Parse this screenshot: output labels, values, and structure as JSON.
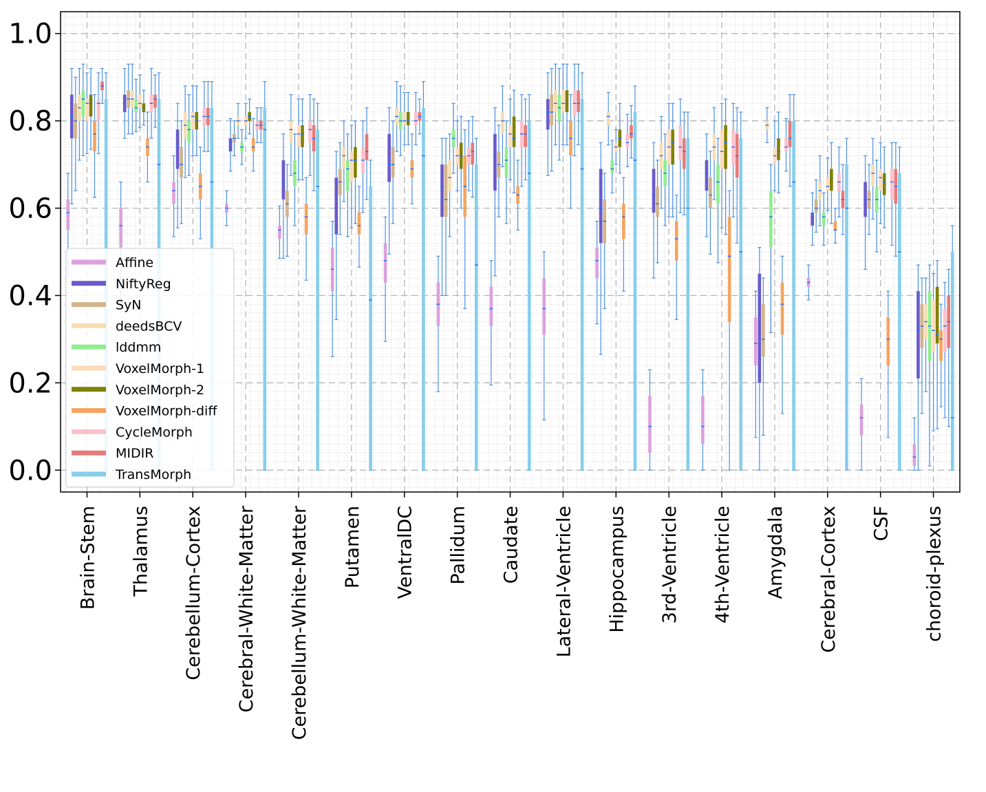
{
  "chart_data": {
    "type": "box",
    "title": "",
    "xlabel": "",
    "ylabel": "",
    "ylim": [
      -0.05,
      1.05
    ],
    "yticks": [
      "0.0",
      "0.2",
      "0.4",
      "0.6",
      "0.8",
      "1.0"
    ],
    "grid": true,
    "legend_position": "lower-left",
    "categories": [
      "Brain-Stem",
      "Thalamus",
      "Cerebellum-Cortex",
      "Cerebral-White-Matter",
      "Cerebellum-White-Matter",
      "Putamen",
      "VentralDC",
      "Pallidum",
      "Caudate",
      "Lateral-Ventricle",
      "Hippocampus",
      "3rd-Ventricle",
      "4th-Ventricle",
      "Amygdala",
      "Cerebral-Cortex",
      "CSF",
      "choroid-plexus"
    ],
    "series": [
      {
        "name": "Affine",
        "color": "#dda0dd",
        "median": [
          0.59,
          0.56,
          0.64,
          0.6,
          0.55,
          0.46,
          0.48,
          0.38,
          0.37,
          0.37,
          0.48,
          0.1,
          0.1,
          0.29,
          0.43,
          0.12,
          0.03
        ],
        "q1": [
          0.55,
          0.51,
          0.61,
          0.59,
          0.53,
          0.41,
          0.43,
          0.33,
          0.33,
          0.31,
          0.44,
          0.04,
          0.06,
          0.24,
          0.42,
          0.08,
          0.01
        ],
        "q3": [
          0.62,
          0.6,
          0.66,
          0.61,
          0.56,
          0.51,
          0.52,
          0.43,
          0.42,
          0.44,
          0.51,
          0.17,
          0.17,
          0.35,
          0.44,
          0.15,
          0.06
        ]
      },
      {
        "name": "NiftyReg",
        "color": "#6a5acd",
        "median": [
          0.81,
          0.84,
          0.74,
          0.75,
          0.66,
          0.63,
          0.7,
          0.65,
          0.72,
          0.82,
          0.6,
          0.63,
          0.68,
          0.29,
          0.58,
          0.62,
          0.32
        ],
        "q1": [
          0.76,
          0.82,
          0.69,
          0.73,
          0.62,
          0.54,
          0.66,
          0.58,
          0.64,
          0.78,
          0.52,
          0.59,
          0.64,
          0.2,
          0.56,
          0.58,
          0.21
        ],
        "q3": [
          0.86,
          0.86,
          0.78,
          0.76,
          0.71,
          0.67,
          0.77,
          0.7,
          0.77,
          0.85,
          0.69,
          0.69,
          0.71,
          0.45,
          0.59,
          0.66,
          0.41
        ]
      },
      {
        "name": "SyN",
        "color": "#d2b48c",
        "median": [
          0.8,
          0.85,
          0.7,
          0.76,
          0.61,
          0.66,
          0.7,
          0.62,
          0.7,
          0.82,
          0.57,
          0.61,
          0.63,
          0.3,
          0.6,
          0.62,
          0.33
        ],
        "q1": [
          0.76,
          0.83,
          0.67,
          0.75,
          0.58,
          0.63,
          0.67,
          0.58,
          0.67,
          0.79,
          0.52,
          0.58,
          0.6,
          0.26,
          0.59,
          0.6,
          0.28
        ],
        "q3": [
          0.84,
          0.87,
          0.74,
          0.77,
          0.64,
          0.69,
          0.74,
          0.7,
          0.73,
          0.86,
          0.62,
          0.65,
          0.67,
          0.38,
          0.62,
          0.64,
          0.38
        ]
      },
      {
        "name": "deedsBCV",
        "color": "#f5deb3",
        "median": [
          0.83,
          0.85,
          0.79,
          0.8,
          0.78,
          0.72,
          0.81,
          0.67,
          0.8,
          0.84,
          0.81,
          0.72,
          0.74,
          0.79,
          0.64,
          0.68,
          0.34
        ],
        "q1": [
          0.8,
          0.83,
          0.76,
          0.79,
          0.75,
          0.69,
          0.79,
          0.64,
          0.77,
          0.82,
          0.79,
          0.69,
          0.71,
          0.78,
          0.62,
          0.65,
          0.3
        ],
        "q3": [
          0.86,
          0.87,
          0.82,
          0.81,
          0.8,
          0.74,
          0.83,
          0.71,
          0.82,
          0.87,
          0.82,
          0.75,
          0.77,
          0.8,
          0.66,
          0.7,
          0.38
        ]
      },
      {
        "name": "lddmm",
        "color": "#90ee90",
        "median": [
          0.85,
          0.83,
          0.78,
          0.74,
          0.68,
          0.69,
          0.8,
          0.76,
          0.71,
          0.83,
          0.69,
          0.68,
          0.66,
          0.58,
          0.58,
          0.62,
          0.33
        ],
        "q1": [
          0.81,
          0.82,
          0.75,
          0.73,
          0.65,
          0.64,
          0.78,
          0.74,
          0.67,
          0.8,
          0.68,
          0.65,
          0.61,
          0.51,
          0.56,
          0.59,
          0.25
        ],
        "q3": [
          0.87,
          0.85,
          0.8,
          0.75,
          0.71,
          0.71,
          0.82,
          0.78,
          0.74,
          0.86,
          0.71,
          0.71,
          0.7,
          0.64,
          0.59,
          0.65,
          0.41
        ]
      },
      {
        "name": "VoxelMorph-1",
        "color": "#ffdab9",
        "median": [
          0.84,
          0.84,
          0.81,
          0.8,
          0.77,
          0.71,
          0.8,
          0.72,
          0.77,
          0.84,
          0.74,
          0.74,
          0.73,
          0.72,
          0.65,
          0.67,
          0.32
        ],
        "q1": [
          0.8,
          0.83,
          0.78,
          0.79,
          0.74,
          0.66,
          0.79,
          0.7,
          0.74,
          0.82,
          0.73,
          0.7,
          0.69,
          0.7,
          0.64,
          0.64,
          0.27
        ],
        "q3": [
          0.85,
          0.86,
          0.82,
          0.81,
          0.79,
          0.73,
          0.82,
          0.74,
          0.79,
          0.87,
          0.75,
          0.78,
          0.78,
          0.74,
          0.67,
          0.69,
          0.39
        ]
      },
      {
        "name": "VoxelMorph-2",
        "color": "#808000",
        "median": [
          0.84,
          0.83,
          0.8,
          0.81,
          0.77,
          0.71,
          0.8,
          0.72,
          0.76,
          0.84,
          0.76,
          0.75,
          0.75,
          0.73,
          0.67,
          0.66,
          0.31
        ],
        "q1": [
          0.81,
          0.82,
          0.78,
          0.8,
          0.74,
          0.67,
          0.79,
          0.69,
          0.74,
          0.82,
          0.74,
          0.7,
          0.69,
          0.71,
          0.64,
          0.63,
          0.29
        ],
        "q3": [
          0.86,
          0.84,
          0.82,
          0.82,
          0.79,
          0.74,
          0.82,
          0.75,
          0.81,
          0.87,
          0.78,
          0.78,
          0.79,
          0.76,
          0.69,
          0.68,
          0.42
        ]
      },
      {
        "name": "VoxelMorph-diff",
        "color": "#f4a460",
        "median": [
          0.77,
          0.74,
          0.65,
          0.74,
          0.58,
          0.56,
          0.69,
          0.65,
          0.63,
          0.76,
          0.58,
          0.53,
          0.49,
          0.38,
          0.55,
          0.3,
          0.3
        ],
        "q1": [
          0.73,
          0.72,
          0.62,
          0.73,
          0.54,
          0.54,
          0.67,
          0.58,
          0.61,
          0.72,
          0.53,
          0.48,
          0.34,
          0.31,
          0.55,
          0.24,
          0.25
        ],
        "q3": [
          0.8,
          0.76,
          0.68,
          0.76,
          0.61,
          0.59,
          0.71,
          0.72,
          0.65,
          0.8,
          0.61,
          0.57,
          0.58,
          0.43,
          0.57,
          0.35,
          0.32
        ]
      },
      {
        "name": "CycleMorph",
        "color": "#ffc0cb",
        "median": [
          0.84,
          0.84,
          0.81,
          0.79,
          0.78,
          0.71,
          0.8,
          0.72,
          0.77,
          0.84,
          0.75,
          0.74,
          0.74,
          0.74,
          0.66,
          0.66,
          0.33
        ],
        "q1": [
          0.8,
          0.82,
          0.79,
          0.78,
          0.75,
          0.68,
          0.79,
          0.7,
          0.74,
          0.81,
          0.74,
          0.71,
          0.7,
          0.73,
          0.64,
          0.62,
          0.27
        ],
        "q3": [
          0.85,
          0.86,
          0.83,
          0.8,
          0.8,
          0.74,
          0.82,
          0.74,
          0.8,
          0.87,
          0.77,
          0.79,
          0.78,
          0.76,
          0.68,
          0.69,
          0.37
        ]
      },
      {
        "name": "MIDIR",
        "color": "#e87a7a",
        "median": [
          0.88,
          0.85,
          0.81,
          0.79,
          0.76,
          0.73,
          0.81,
          0.73,
          0.77,
          0.84,
          0.77,
          0.73,
          0.72,
          0.76,
          0.62,
          0.65,
          0.34
        ],
        "q1": [
          0.87,
          0.83,
          0.79,
          0.78,
          0.73,
          0.71,
          0.8,
          0.7,
          0.74,
          0.82,
          0.76,
          0.69,
          0.67,
          0.74,
          0.6,
          0.61,
          0.28
        ],
        "q3": [
          0.89,
          0.86,
          0.83,
          0.8,
          0.79,
          0.77,
          0.82,
          0.75,
          0.79,
          0.87,
          0.79,
          0.76,
          0.77,
          0.8,
          0.64,
          0.69,
          0.4
        ]
      },
      {
        "name": "TransMorph",
        "color": "#87ceeb",
        "median": [
          0.48,
          0.7,
          0.66,
          0.78,
          0.65,
          0.39,
          0.72,
          0.47,
          0.68,
          0.69,
          0.71,
          0.6,
          0.5,
          0.66,
          0.6,
          0.5,
          0.12
        ],
        "q1": [
          0.0,
          0.0,
          0.0,
          0.0,
          0.0,
          0.0,
          0.0,
          0.0,
          0.0,
          0.0,
          0.0,
          0.0,
          0.0,
          0.0,
          0.0,
          0.0,
          0.0
        ],
        "q3": [
          0.85,
          0.85,
          0.83,
          0.83,
          0.78,
          0.65,
          0.83,
          0.7,
          0.8,
          0.85,
          0.82,
          0.76,
          0.76,
          0.8,
          0.7,
          0.68,
          0.5
        ]
      }
    ]
  }
}
